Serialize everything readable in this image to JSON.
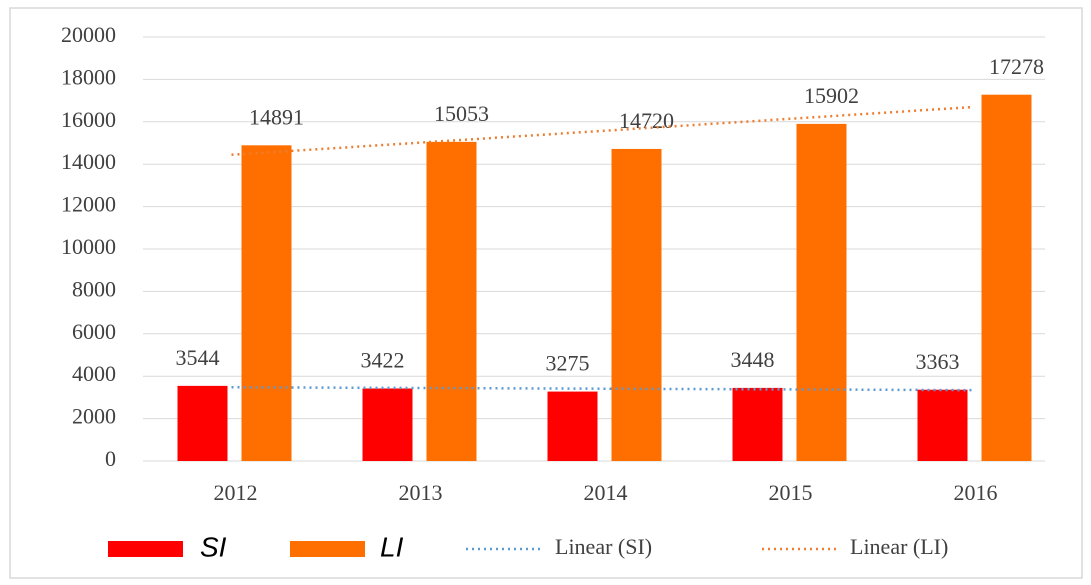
{
  "chart_data": {
    "type": "bar",
    "categories": [
      "2012",
      "2013",
      "2014",
      "2015",
      "2016"
    ],
    "series": [
      {
        "name": "SI",
        "color": "#ff0000",
        "values": [
          3544,
          3422,
          3275,
          3448,
          3363
        ],
        "trendline": "Linear (SI)",
        "trendline_color": "#5b9bd5"
      },
      {
        "name": "LI",
        "color": "#ff6f00",
        "values": [
          14891,
          15053,
          14720,
          15902,
          17278
        ],
        "trendline": "Linear (LI)",
        "trendline_color": "#ed7d31"
      }
    ],
    "ylim": [
      0,
      20000
    ],
    "yticks": [
      0,
      2000,
      4000,
      6000,
      8000,
      10000,
      12000,
      14000,
      16000,
      18000,
      20000
    ],
    "grid": true,
    "legend": "bottom"
  }
}
